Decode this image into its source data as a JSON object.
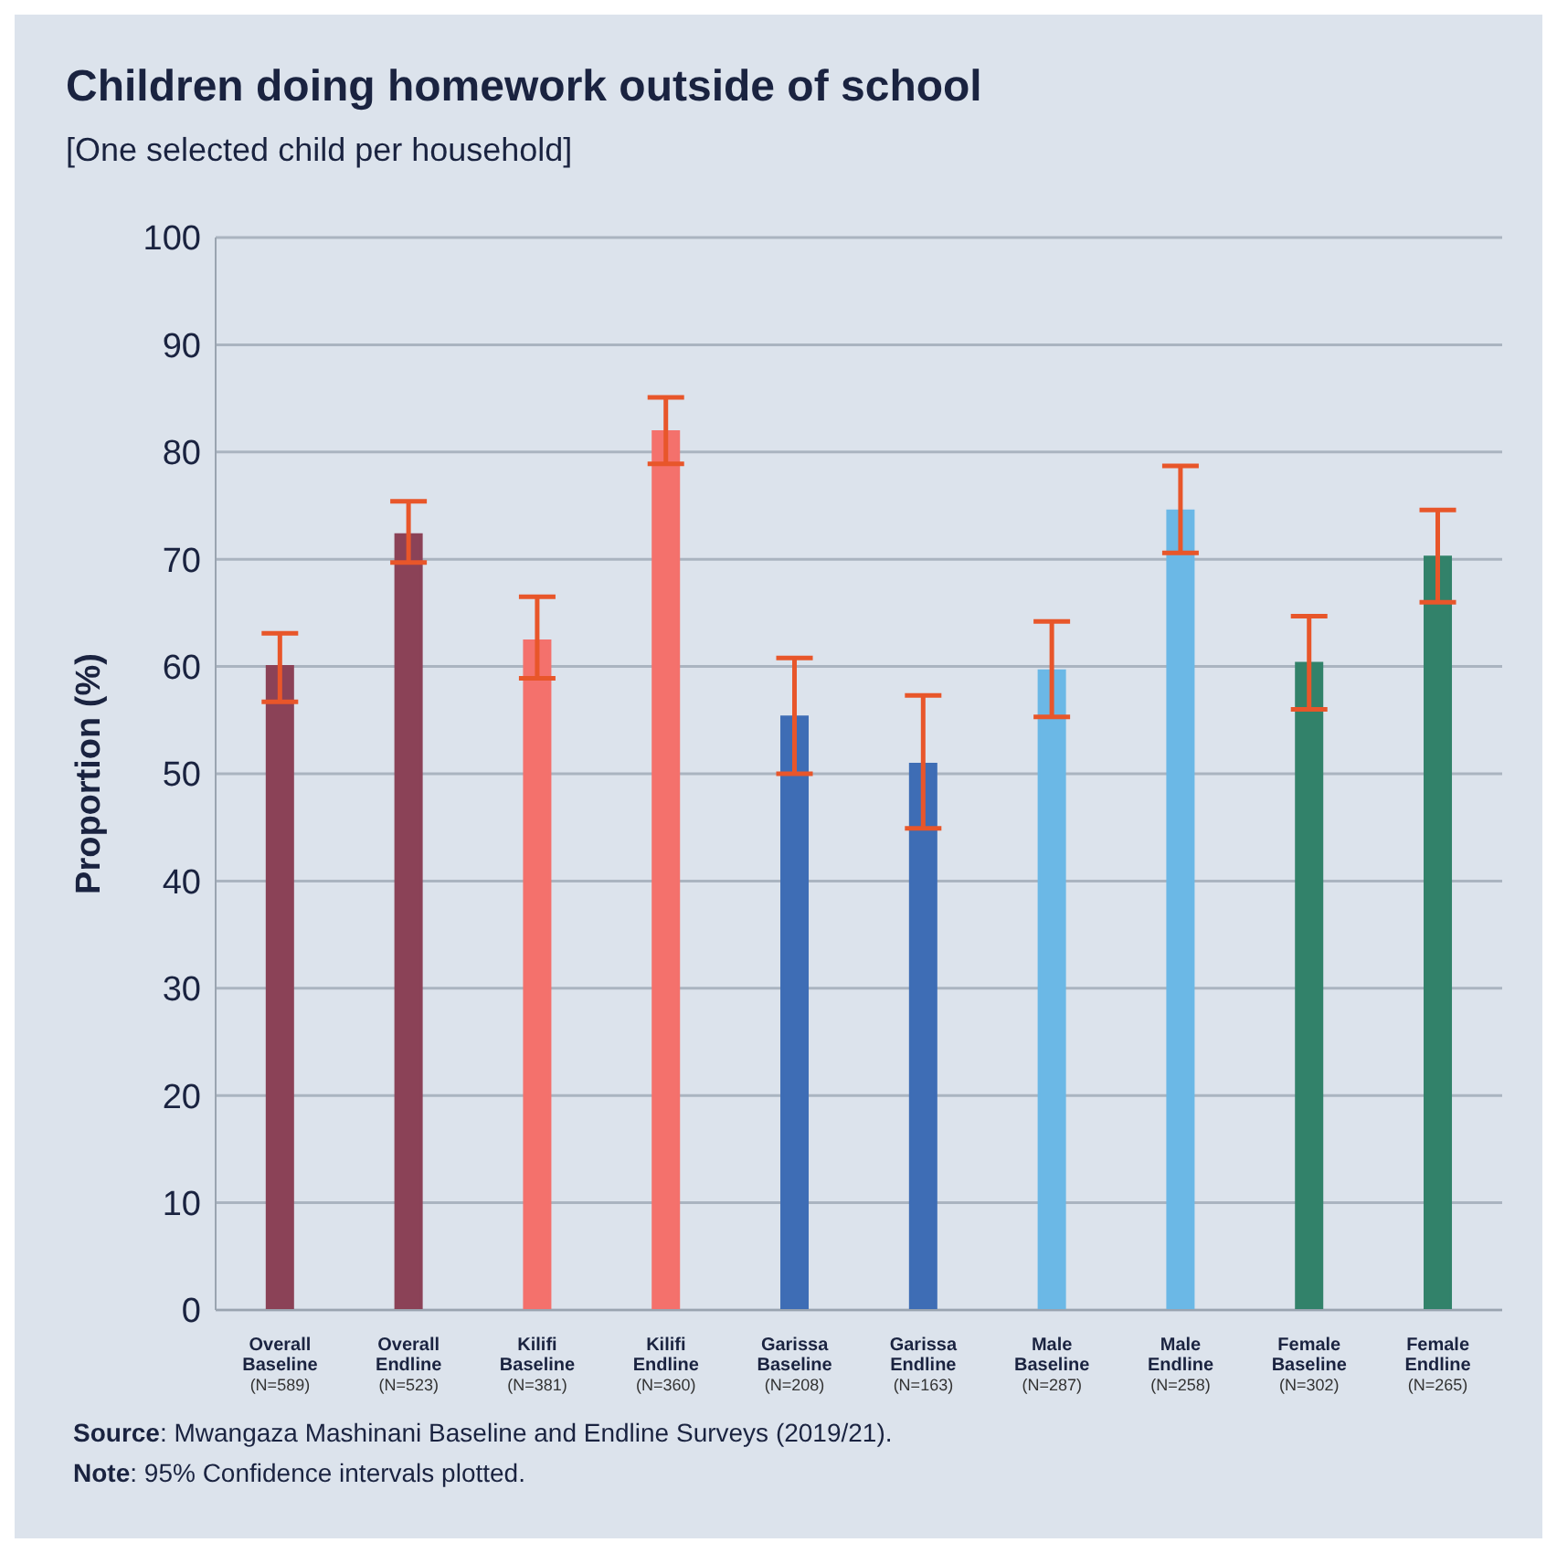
{
  "chart_data": {
    "type": "bar",
    "title": "Children doing homework outside of school",
    "subtitle": "[One selected child per household]",
    "ylabel": "Proportion (%)",
    "categories": [
      "Overall\nBaseline\n(N=589)",
      "Overall\nEndline\n(N=523)",
      "Kilifi\nBaseline\n(N=381)",
      "Kilifi\nEndline\n(N=360)",
      "Garissa\nBaseline\n(N=208)",
      "Garissa\nEndline\n(N=163)",
      "Male\nBaseline\n(N=287)",
      "Male\nEndline\n(N=258)",
      "Female\nBaseline\n(N=302)",
      "Female\nEndline\n(N=265)"
    ],
    "values": [
      60,
      72.3,
      62.4,
      81.9,
      55.3,
      50.9,
      59.6,
      74.5,
      60.3,
      70.2
    ],
    "colors": [
      "#8b4257",
      "#8b4257",
      "#f4716c",
      "#f4716c",
      "#3e6db5",
      "#3e6db5",
      "#6bb8e6",
      "#6bb8e6",
      "#32826a",
      "#32826a"
    ],
    "errors": [
      [
        56.7,
        63.1
      ],
      [
        69.7,
        75.4
      ],
      [
        58.9,
        66.5
      ],
      [
        78.9,
        85.1
      ],
      [
        50,
        60.8
      ],
      [
        44.9,
        57.3
      ],
      [
        55.3,
        64.2
      ],
      [
        70.6,
        78.7
      ],
      [
        56,
        64.7
      ],
      [
        66,
        74.6
      ]
    ],
    "ylim": [
      0,
      100
    ],
    "yticks": [
      0,
      10,
      20,
      30,
      40,
      50,
      60,
      70,
      80,
      90,
      100
    ],
    "grid": "y",
    "annotations": [
      "Source: Mwangaza Mashinani Baseline and Endline Surveys (2019/21).",
      "Note: 95% Confidence intervals plotted."
    ]
  }
}
